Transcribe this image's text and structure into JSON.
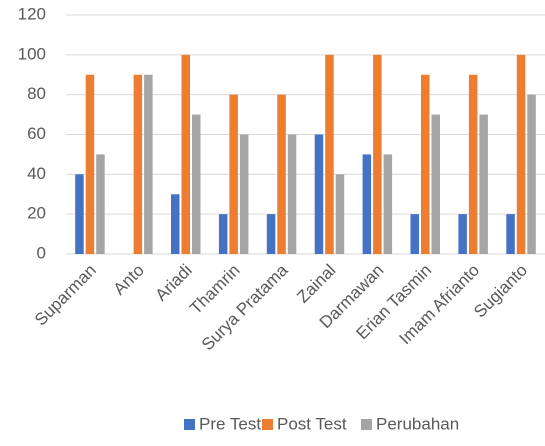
{
  "chart_data": {
    "type": "bar",
    "categories": [
      "Suparman",
      "Anto",
      "Ariadi",
      "Thamrin",
      "Surya Pratama",
      "Zainal",
      "Darmawan",
      "Erian Tasmin",
      "Imam Afrianto",
      "Sugianto"
    ],
    "series": [
      {
        "name": "Pre Test",
        "color": "#4472c4",
        "values": [
          40,
          0,
          30,
          20,
          20,
          60,
          50,
          20,
          20,
          20
        ]
      },
      {
        "name": "Post Test",
        "color": "#ed7d31",
        "values": [
          90,
          90,
          100,
          80,
          80,
          100,
          100,
          90,
          90,
          100
        ]
      },
      {
        "name": "Perubahan",
        "color": "#a5a5a5",
        "values": [
          50,
          90,
          70,
          60,
          60,
          40,
          50,
          70,
          70,
          80
        ]
      }
    ],
    "ylim": [
      0,
      120
    ],
    "yticks": [
      0,
      20,
      40,
      60,
      80,
      100,
      120
    ],
    "grid": true,
    "legend": "bottom"
  }
}
